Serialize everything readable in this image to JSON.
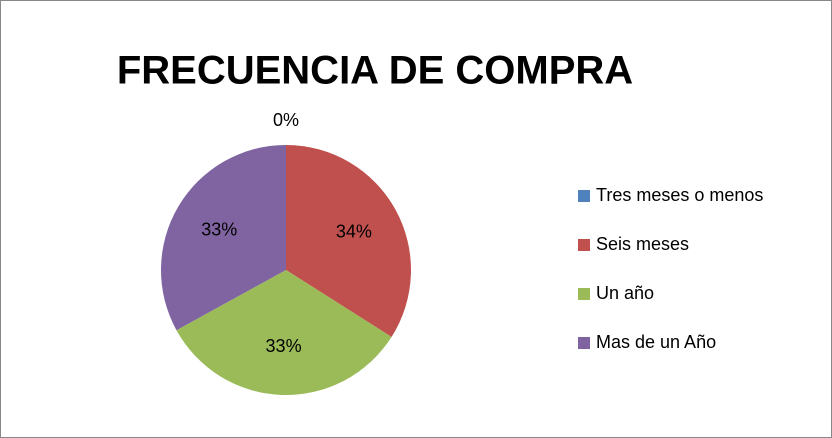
{
  "chart_data": {
    "type": "pie",
    "title": "FRECUENCIA DE COMPRA",
    "categories": [
      "Tres meses o menos",
      "Seis meses",
      "Un año",
      "Mas de un Año"
    ],
    "values": [
      0,
      34,
      33,
      33
    ],
    "value_labels": [
      "0%",
      "34%",
      "33%",
      "33%"
    ],
    "colors": [
      "#4f81bd",
      "#c0504d",
      "#9bbb59",
      "#8064a2"
    ],
    "legend": "right"
  }
}
